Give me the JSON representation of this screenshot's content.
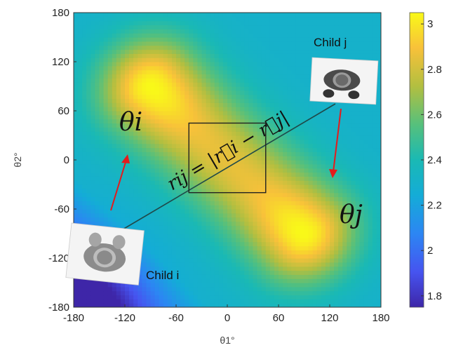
{
  "chart_data": {
    "type": "heatmap",
    "xlabel": "θ1°",
    "ylabel": "θ2°",
    "xlim": [
      -180,
      180
    ],
    "ylim": [
      -180,
      180
    ],
    "x_ticks": [
      "-180",
      "-120",
      "-60",
      "0",
      "60",
      "120",
      "180"
    ],
    "y_ticks": [
      "180",
      "120",
      "60",
      "0",
      "-60",
      "-120",
      "-180"
    ],
    "colorbar": {
      "range": [
        1.75,
        3.05
      ],
      "ticks": [
        "3",
        "2.8",
        "2.6",
        "2.4",
        "2.2",
        "2",
        "1.8"
      ],
      "colormap": "parula"
    },
    "surface": {
      "description_values": "high ridge along diagonal from (-85,85) to (85,-85)",
      "peaks": [
        {
          "x": -90,
          "y": 90,
          "value": 3.0
        },
        {
          "x": 90,
          "y": -90,
          "value": 3.0
        }
      ],
      "center_value": 2.75,
      "corner_values": [
        {
          "x": -180,
          "y": 180,
          "value": 2.3
        },
        {
          "x": 180,
          "y": 180,
          "value": 2.3
        },
        {
          "x": -180,
          "y": -180,
          "value": 1.8
        },
        {
          "x": 180,
          "y": -180,
          "value": 2.3
        }
      ]
    },
    "grid": false
  },
  "annotations": {
    "child_i": "Child i",
    "child_j": "Child j",
    "theta_i": "θi",
    "theta_j": "θj",
    "r_ij": "rij = |r⃗i − r⃗j|",
    "box": {
      "x0": -45,
      "x1": 45,
      "y0": -40,
      "y1": 45
    }
  },
  "colors": {
    "arrow": "#e41b1b",
    "connector": "#1f4a4a",
    "box": "#222222"
  }
}
